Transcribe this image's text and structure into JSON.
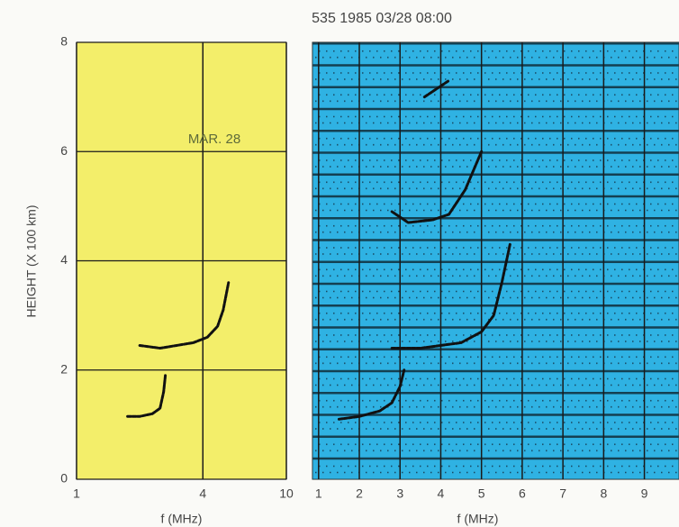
{
  "chart_data": [
    {
      "type": "line",
      "title": "535 1985 03/28 08:00",
      "annotation": "MAR. 28",
      "ylabel": "HEIGHT (X 100 km)",
      "xlabel": "f (MHz)",
      "xscale": "log",
      "xlim": [
        1,
        10
      ],
      "xticks": [
        1,
        4,
        10
      ],
      "ylim": [
        0,
        8
      ],
      "yticks": [
        0,
        2,
        4,
        6,
        8
      ],
      "grid": true,
      "background": "#f3ee6a",
      "series": [
        {
          "color": "#111111",
          "x": [
            1.75,
            2.0,
            2.3,
            2.5,
            2.6,
            2.65
          ],
          "values": [
            1.15,
            1.15,
            1.2,
            1.3,
            1.6,
            1.9
          ]
        },
        {
          "color": "#111111",
          "x": [
            2.0,
            2.5,
            3.0,
            3.6,
            4.2,
            4.7,
            5.0,
            5.3
          ],
          "values": [
            2.45,
            2.4,
            2.45,
            2.5,
            2.6,
            2.8,
            3.1,
            3.6
          ]
        }
      ]
    },
    {
      "type": "line",
      "xlabel": "f (MHz)",
      "xlim": [
        0.85,
        9.85
      ],
      "xticks": [
        1,
        2,
        3,
        4,
        5,
        6,
        7,
        8,
        9
      ],
      "ylim": [
        0,
        8
      ],
      "grid": true,
      "background": "#2fb2e3",
      "series": [
        {
          "color": "#111111",
          "x": [
            1.5,
            2.0,
            2.5,
            2.8,
            3.0,
            3.1
          ],
          "values": [
            1.1,
            1.15,
            1.25,
            1.4,
            1.7,
            2.0
          ]
        },
        {
          "color": "#111111",
          "x": [
            2.8,
            3.5,
            4.5,
            5.0,
            5.3,
            5.5,
            5.7
          ],
          "values": [
            2.4,
            2.4,
            2.5,
            2.7,
            3.0,
            3.6,
            4.3
          ]
        },
        {
          "color": "#111111",
          "x": [
            2.8,
            3.2,
            3.8,
            4.2,
            4.6,
            5.0
          ],
          "values": [
            4.9,
            4.7,
            4.75,
            4.85,
            5.3,
            6.0
          ]
        },
        {
          "color": "#111111",
          "x": [
            3.6,
            3.8,
            4.0,
            4.2
          ],
          "values": [
            7.0,
            7.1,
            7.2,
            7.3
          ]
        }
      ]
    }
  ]
}
